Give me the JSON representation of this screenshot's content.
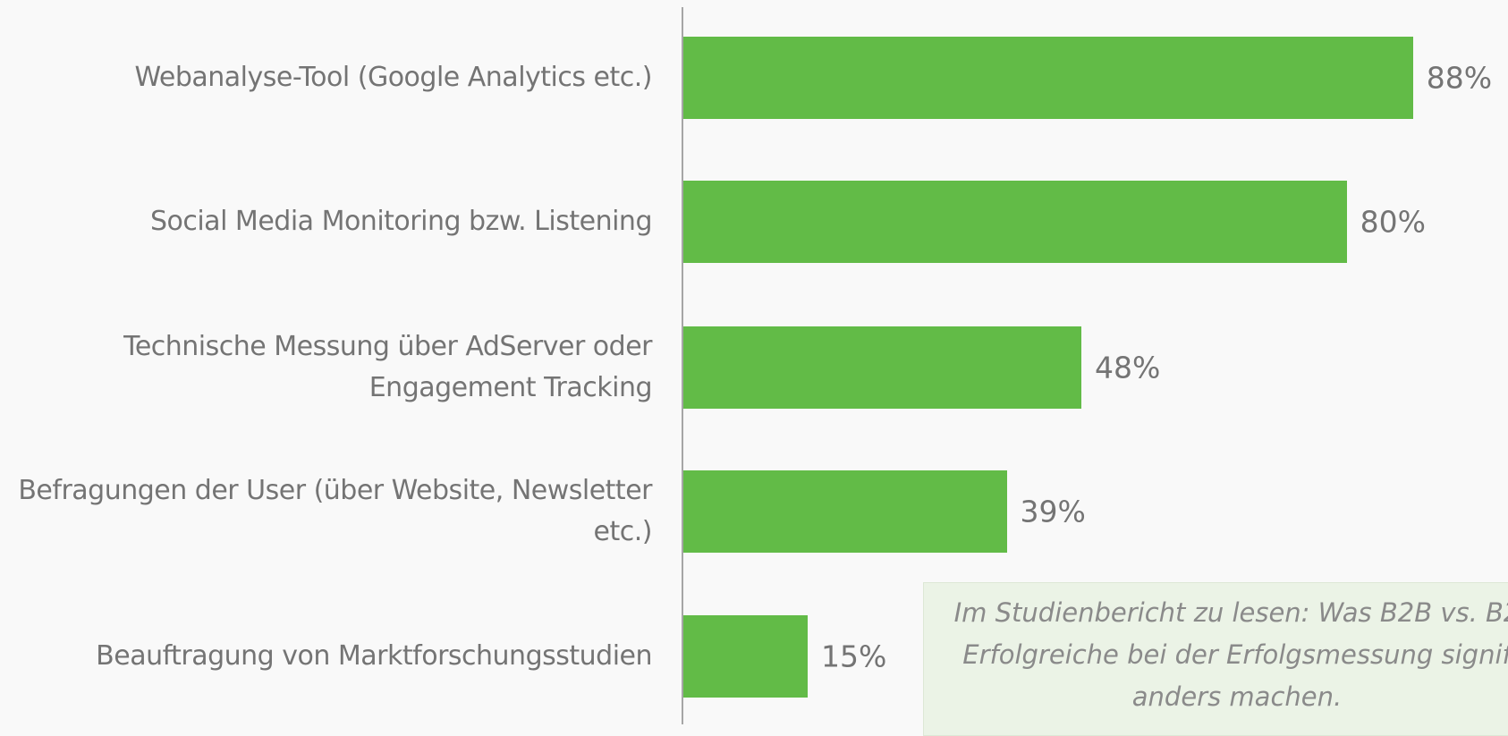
{
  "chart_data": {
    "type": "bar",
    "orientation": "horizontal",
    "categories": [
      "Webanalyse-Tool (Google Analytics etc.)",
      "Social Media Monitoring bzw. Listening",
      "Technische Messung über AdServer oder\nEngagement Tracking",
      "Befragungen der User (über Website, Newsletter\netc.)",
      "Beauftragung von Marktforschungsstudien"
    ],
    "values": [
      88,
      80,
      48,
      39,
      15
    ],
    "value_labels": [
      "88%",
      "80%",
      "48%",
      "39%",
      "15%"
    ],
    "color": "#62bb47",
    "annotation": [
      "Im Studienbericht zu lesen: Was B2B vs. B2",
      "Erfolgreiche bei der Erfolgsmessung signif",
      "anders machen."
    ]
  }
}
